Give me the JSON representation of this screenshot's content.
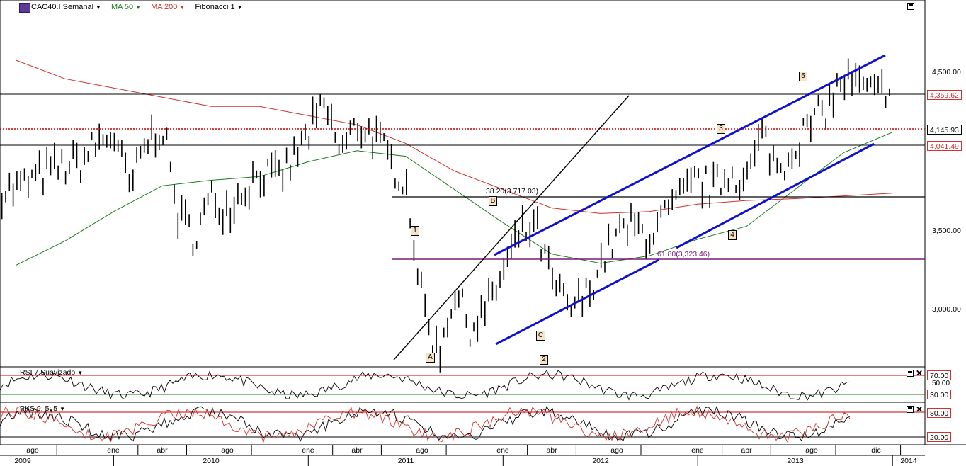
{
  "toolbar": {
    "symbol": "CAC40.I Semanal",
    "ma50": "MA 50",
    "ma200": "MA 200",
    "fib": "Fibonacci 1"
  },
  "colors": {
    "ma50": "#1e7a1e",
    "ma200": "#d03030",
    "channel": "#1010d0",
    "fib_top": "#000000",
    "fib_bottom": "#7a1a7a",
    "resistance": "#d03030"
  },
  "price_axis": {
    "ticks": [
      "4,500.00",
      "3,500.00",
      "3,000.00"
    ],
    "tags": [
      {
        "label": "4,359.62",
        "color": "#d03030"
      },
      {
        "label": "4,145.93",
        "color": "#000000"
      },
      {
        "label": "4,041.49",
        "color": "#d03030"
      }
    ]
  },
  "fib_labels": {
    "top": "38.20(3,717.03)",
    "bottom": "61.80(3,323.46)"
  },
  "waves": {
    "one": "1",
    "b": "B",
    "a": "A",
    "c": "C",
    "two": "2",
    "three": "3",
    "four": "4",
    "five": "5"
  },
  "rsi": {
    "label": "RSI 7 Suavizado",
    "levels": [
      "70.00",
      "50.00",
      "30.00"
    ]
  },
  "pks": {
    "label": "PKS 9; 5; 5",
    "levels": [
      "80.00",
      "20.00"
    ]
  },
  "time_axis": {
    "months": [
      "ago",
      "ene",
      "abr",
      "ago",
      "ene",
      "abr",
      "ago",
      "ene",
      "abr",
      "ago",
      "ene",
      "abr",
      "ago",
      "dic"
    ],
    "years": [
      "2009",
      "2010",
      "2011",
      "2012",
      "2013",
      "2014"
    ]
  },
  "chart_data": {
    "type": "line",
    "title": "CAC40.I Semanal",
    "ylim": [
      2750,
      4650
    ],
    "series": [
      {
        "name": "CAC40.I",
        "key": "price",
        "points": [
          [
            "2009-07",
            3700
          ],
          [
            "2009-09",
            3800
          ],
          [
            "2009-11",
            3850
          ],
          [
            "2009-12",
            3950
          ],
          [
            "2010-01",
            4000
          ],
          [
            "2010-02",
            3700
          ],
          [
            "2010-03",
            3950
          ],
          [
            "2010-04",
            4050
          ],
          [
            "2010-05",
            3550
          ],
          [
            "2010-06",
            3450
          ],
          [
            "2010-07",
            3650
          ],
          [
            "2010-08",
            3600
          ],
          [
            "2010-09",
            3700
          ],
          [
            "2010-10",
            3800
          ],
          [
            "2010-11",
            3750
          ],
          [
            "2010-12",
            3850
          ],
          [
            "2011-01",
            4000
          ],
          [
            "2011-02",
            4150
          ],
          [
            "2011-03",
            3900
          ],
          [
            "2011-04",
            4050
          ],
          [
            "2011-05",
            4000
          ],
          [
            "2011-06",
            3850
          ],
          [
            "2011-07",
            3750
          ],
          [
            "2011-08",
            3100
          ],
          [
            "2011-09",
            2800
          ],
          [
            "2011-10",
            3150
          ],
          [
            "2011-11",
            2950
          ],
          [
            "2011-12",
            3050
          ],
          [
            "2012-01",
            3250
          ],
          [
            "2012-02",
            3450
          ],
          [
            "2012-03",
            3500
          ],
          [
            "2012-04",
            3200
          ],
          [
            "2012-05",
            3050
          ],
          [
            "2012-06",
            3100
          ],
          [
            "2012-07",
            3300
          ],
          [
            "2012-08",
            3450
          ],
          [
            "2012-09",
            3500
          ],
          [
            "2012-10",
            3450
          ],
          [
            "2012-11",
            3550
          ],
          [
            "2012-12",
            3650
          ],
          [
            "2013-01",
            3750
          ],
          [
            "2013-02",
            3700
          ],
          [
            "2013-03",
            3800
          ],
          [
            "2013-04",
            3750
          ],
          [
            "2013-05",
            4000
          ],
          [
            "2013-06",
            3800
          ],
          [
            "2013-07",
            3950
          ],
          [
            "2013-08",
            4050
          ],
          [
            "2013-09",
            4150
          ],
          [
            "2013-10",
            4300
          ],
          [
            "2013-11",
            4250
          ],
          [
            "2013-12",
            4200
          ],
          [
            "2014-01",
            4300
          ]
        ]
      },
      {
        "name": "MA 50",
        "key": "ma50",
        "points": [
          [
            "2009-07",
            3290
          ],
          [
            "2009-10",
            3420
          ],
          [
            "2010-01",
            3580
          ],
          [
            "2010-04",
            3720
          ],
          [
            "2010-07",
            3750
          ],
          [
            "2010-10",
            3770
          ],
          [
            "2011-01",
            3850
          ],
          [
            "2011-04",
            3910
          ],
          [
            "2011-07",
            3880
          ],
          [
            "2011-10",
            3700
          ],
          [
            "2012-01",
            3520
          ],
          [
            "2012-04",
            3350
          ],
          [
            "2012-07",
            3300
          ],
          [
            "2012-10",
            3340
          ],
          [
            "2013-01",
            3430
          ],
          [
            "2013-04",
            3500
          ],
          [
            "2013-07",
            3700
          ],
          [
            "2013-10",
            3900
          ],
          [
            "2014-01",
            4010
          ]
        ]
      },
      {
        "name": "MA 200",
        "key": "ma200",
        "points": [
          [
            "2009-07",
            4400
          ],
          [
            "2009-10",
            4300
          ],
          [
            "2010-01",
            4250
          ],
          [
            "2010-04",
            4200
          ],
          [
            "2010-07",
            4150
          ],
          [
            "2010-10",
            4150
          ],
          [
            "2011-01",
            4100
          ],
          [
            "2011-04",
            4050
          ],
          [
            "2011-07",
            3950
          ],
          [
            "2011-10",
            3800
          ],
          [
            "2012-01",
            3700
          ],
          [
            "2012-04",
            3600
          ],
          [
            "2012-07",
            3570
          ],
          [
            "2012-10",
            3580
          ],
          [
            "2013-01",
            3620
          ],
          [
            "2013-04",
            3640
          ],
          [
            "2013-07",
            3650
          ],
          [
            "2013-10",
            3665
          ],
          [
            "2014-01",
            3680
          ]
        ]
      }
    ]
  }
}
